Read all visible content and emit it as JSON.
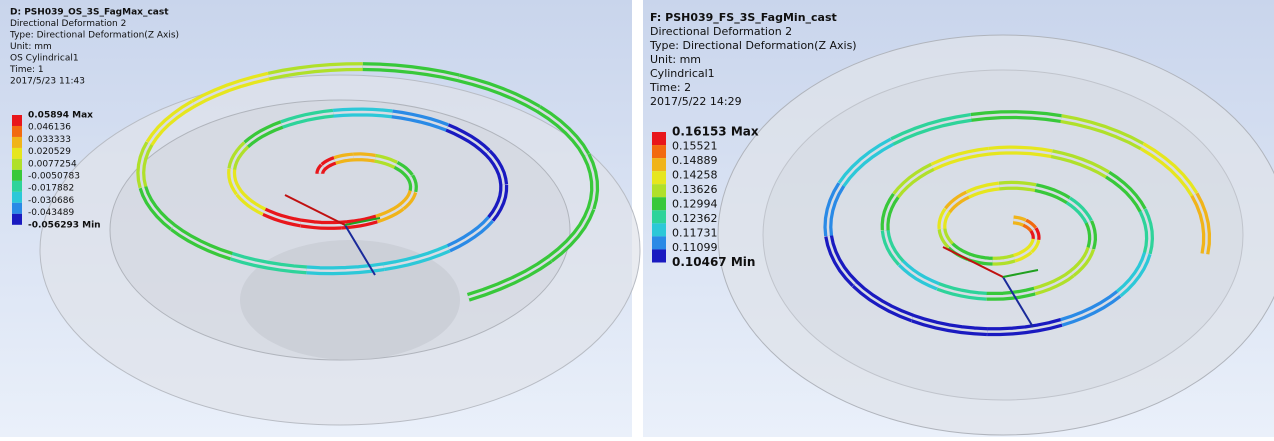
{
  "panels": [
    {
      "title": "D: PSH039_OS_3S_FagMax_cast",
      "lines": [
        "Directional Deformation 2",
        "Type: Directional Deformation(Z Axis)",
        "Unit: mm",
        "OS Cylindrical1",
        "Time: 1",
        "2017/5/23 11:43"
      ],
      "legend": {
        "items": [
          "0.05894 Max",
          "0.046136",
          "0.033333",
          "0.020529",
          "0.0077254",
          "-0.0050783",
          "-0.017882",
          "-0.030686",
          "-0.043489",
          "-0.056293 Min"
        ],
        "colors": [
          "#e8161b",
          "#f26a10",
          "#f0b41a",
          "#e6e61e",
          "#b0e02a",
          "#38c83a",
          "#2ed39a",
          "#2cc8d8",
          "#2a8ae6",
          "#1a1ac0"
        ]
      }
    },
    {
      "title": "F: PSH039_FS_3S_FagMin_cast",
      "lines": [
        "Directional Deformation 2",
        "Type: Directional Deformation(Z Axis)",
        "Unit: mm",
        "Cylindrical1",
        "Time: 2",
        "2017/5/22 14:29"
      ],
      "legend": {
        "items": [
          "0.16153 Max",
          "0.15521",
          "0.14889",
          "0.14258",
          "0.13626",
          "0.12994",
          "0.12362",
          "0.11731",
          "0.11099",
          "0.10467 Min"
        ],
        "colors": [
          "#e8161b",
          "#f26a10",
          "#f0b41a",
          "#e6e61e",
          "#b0e02a",
          "#38c83a",
          "#2ed39a",
          "#2cc8d8",
          "#2a8ae6",
          "#1a1ac0"
        ]
      }
    }
  ]
}
